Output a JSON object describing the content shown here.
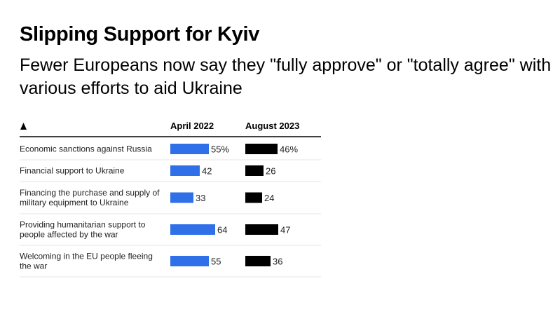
{
  "title": "Slipping Support for Kyiv",
  "subtitle": "Fewer Europeans now say they \"fully approve\" or \"totally agree\" with various efforts to aid Ukraine",
  "sort_icon": "triangle-up-icon",
  "colors": {
    "april_2022": "#2f6fe8",
    "august_2023": "#000000"
  },
  "chart_data": {
    "type": "table",
    "columns": [
      "April 2022",
      "August 2023"
    ],
    "rows": [
      {
        "label_lines": [
          "Economic sanctions against Russia"
        ],
        "values": [
          55,
          46
        ],
        "value_labels": [
          "55%",
          "46%"
        ]
      },
      {
        "label_lines": [
          "Financial support to Ukraine"
        ],
        "values": [
          42,
          26
        ],
        "value_labels": [
          "42",
          "26"
        ]
      },
      {
        "label_lines": [
          "Financing the purchase and supply of",
          "military equipment to Ukraine"
        ],
        "values": [
          33,
          24
        ],
        "value_labels": [
          "33",
          "24"
        ]
      },
      {
        "label_lines": [
          "Providing humanitarian support to",
          "people affected by the war"
        ],
        "values": [
          64,
          47
        ],
        "value_labels": [
          "64",
          "47"
        ]
      },
      {
        "label_lines": [
          "Welcoming in the EU people fleeing",
          "the war"
        ],
        "values": [
          55,
          36
        ],
        "value_labels": [
          "55",
          "36"
        ]
      }
    ],
    "unit": "%",
    "value_max": 100
  }
}
